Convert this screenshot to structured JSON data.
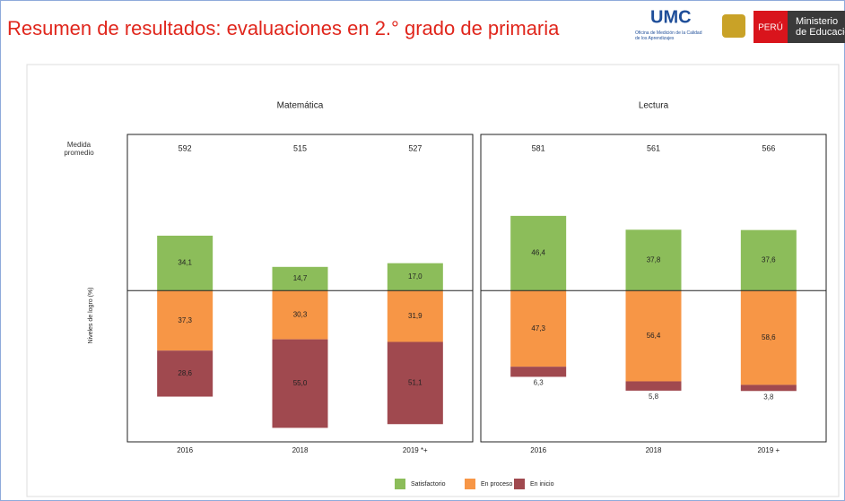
{
  "header": {
    "title": "Resumen de resultados: evaluaciones en 2.° grado de primaria",
    "logo": "UMC",
    "logo_sub": "Oficina de Medición de la Calidad de los Aprendizajes",
    "badge": "PERÚ",
    "ministry_1": "Ministerio",
    "ministry_2": "de Educación"
  },
  "chart_data": [
    {
      "type": "diverging_bar",
      "title": "Matemática",
      "row_label": "Medida promedio",
      "y_label": "Niveles de logro (%)",
      "categories": [
        "2016",
        "2018",
        "2019 *+"
      ],
      "averages": [
        592,
        515,
        527
      ],
      "ylim": [
        -94,
        97
      ],
      "series": [
        {
          "name": "Satisfactorio",
          "color": "#8cbd5a",
          "side": "above",
          "values": [
            34.1,
            14.7,
            17.0
          ],
          "value_labels": [
            "34,1",
            "14,7",
            "17,0"
          ]
        },
        {
          "name": "En proceso",
          "color": "#f79646",
          "side": "below",
          "values": [
            37.3,
            30.3,
            31.9
          ],
          "value_labels": [
            "37,3",
            "30,3",
            "31,9"
          ]
        },
        {
          "name": "En inicio",
          "color": "#a0494f",
          "side": "below",
          "values": [
            28.6,
            55.0,
            51.1
          ],
          "value_labels": [
            "28,6",
            "55,0",
            "51,1"
          ]
        }
      ]
    },
    {
      "type": "diverging_bar",
      "title": "Lectura",
      "categories": [
        "2016",
        "2018",
        "2019 +"
      ],
      "averages": [
        581,
        561,
        566
      ],
      "ylim": [
        -94,
        97
      ],
      "series": [
        {
          "name": "Satisfactorio",
          "color": "#8cbd5a",
          "side": "above",
          "values": [
            46.4,
            37.8,
            37.6
          ],
          "value_labels": [
            "46,4",
            "37,8",
            "37,6"
          ]
        },
        {
          "name": "En proceso",
          "color": "#f79646",
          "side": "below",
          "values": [
            47.3,
            56.4,
            58.6
          ],
          "value_labels": [
            "47,3",
            "56,4",
            "58,6"
          ]
        },
        {
          "name": "En inicio",
          "color": "#a0494f",
          "side": "below",
          "values": [
            6.3,
            5.8,
            3.8
          ],
          "value_labels": [
            "6,3",
            "5,8",
            "3,8"
          ]
        }
      ]
    }
  ]
}
